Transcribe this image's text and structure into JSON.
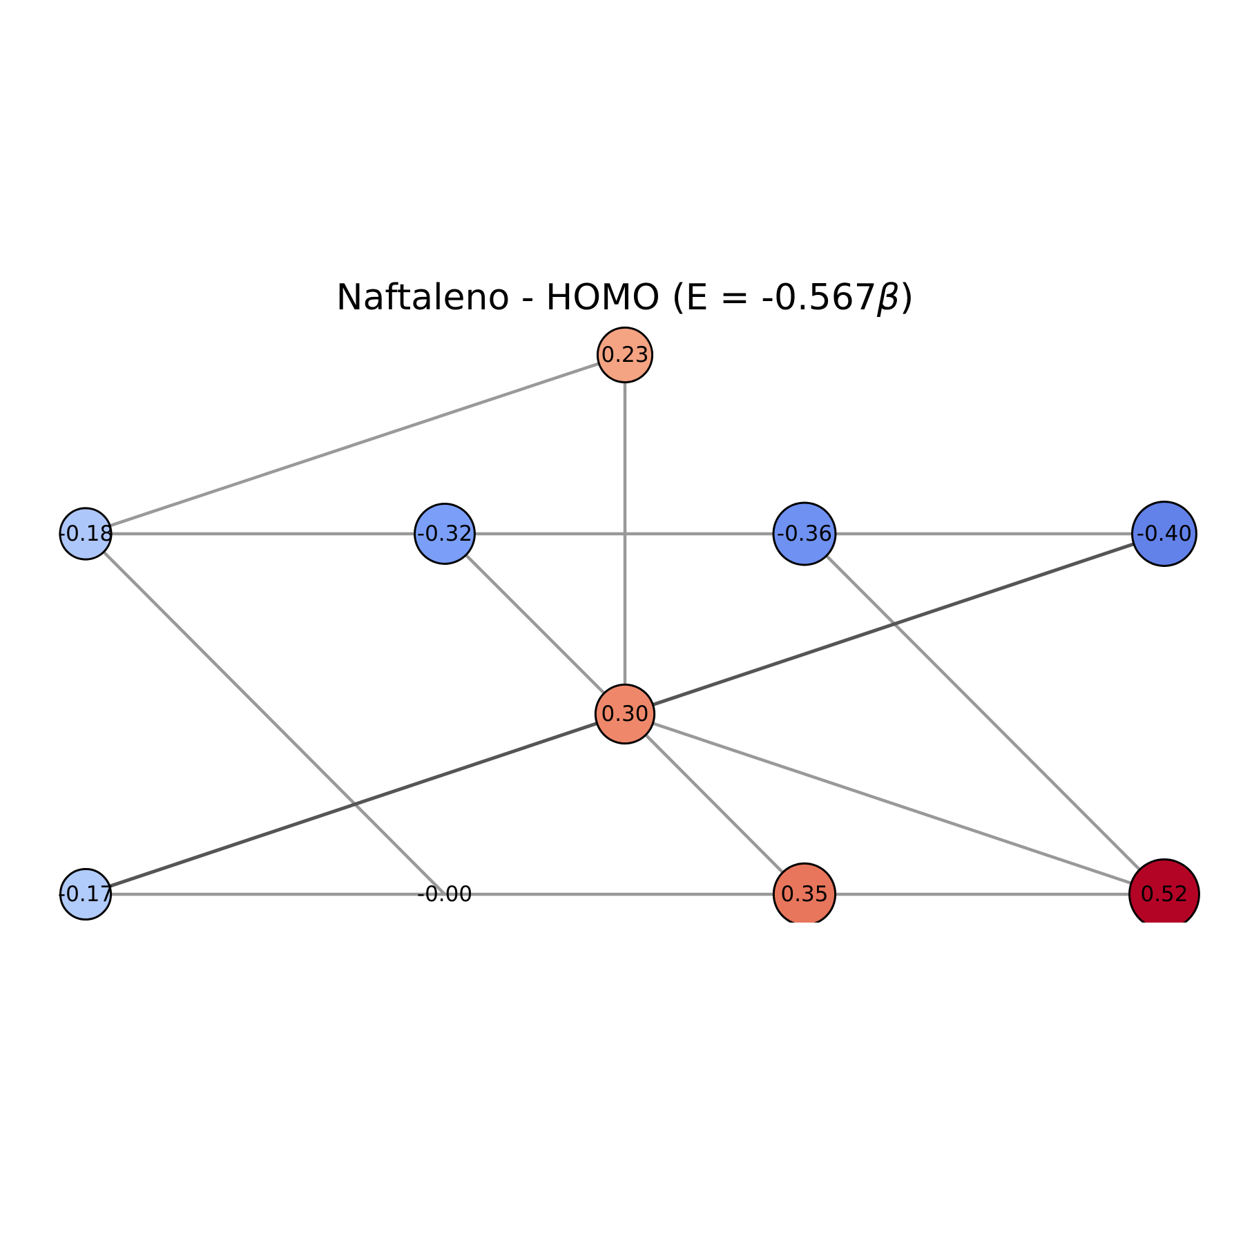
{
  "title": {
    "prefix": "Naftaleno - HOMO (E = -0.567",
    "beta": "β",
    "suffix": ")"
  },
  "nodes": [
    {
      "id": "n-023",
      "label": "0.23",
      "value": 0.23,
      "color": "#f4a383"
    },
    {
      "id": "n-m018",
      "label": "-0.18",
      "value": -0.18,
      "color": "#aec7fa"
    },
    {
      "id": "n-m032",
      "label": "-0.32",
      "value": -0.32,
      "color": "#7b9ff9"
    },
    {
      "id": "n-m036",
      "label": "-0.36",
      "value": -0.36,
      "color": "#6f91f2"
    },
    {
      "id": "n-m040",
      "label": "-0.40",
      "value": -0.4,
      "color": "#6282ea"
    },
    {
      "id": "n-030",
      "label": "0.30",
      "value": 0.3,
      "color": "#ef886b"
    },
    {
      "id": "n-m017",
      "label": "-0.17",
      "value": -0.17,
      "color": "#b1cbfb"
    },
    {
      "id": "n-000",
      "label": "-0.00",
      "value": 0.0,
      "color": "#dddcdc"
    },
    {
      "id": "n-035",
      "label": "0.35",
      "value": 0.35,
      "color": "#e8765c"
    },
    {
      "id": "n-052",
      "label": "0.52",
      "value": 0.52,
      "color": "#b40426"
    }
  ],
  "edges": [
    {
      "from": "n-m018",
      "to": "n-023",
      "dark": false
    },
    {
      "from": "n-023",
      "to": "n-030",
      "dark": false
    },
    {
      "from": "n-m018",
      "to": "n-m032",
      "dark": false
    },
    {
      "from": "n-m032",
      "to": "n-m036",
      "dark": false
    },
    {
      "from": "n-m036",
      "to": "n-m040",
      "dark": false
    },
    {
      "from": "n-m018",
      "to": "n-000",
      "dark": false
    },
    {
      "from": "n-m032",
      "to": "n-030",
      "dark": false
    },
    {
      "from": "n-m036",
      "to": "n-052",
      "dark": false
    },
    {
      "from": "n-030",
      "to": "n-m040",
      "dark": true
    },
    {
      "from": "n-m017",
      "to": "n-030",
      "dark": true
    },
    {
      "from": "n-030",
      "to": "n-052",
      "dark": false
    },
    {
      "from": "n-030",
      "to": "n-035",
      "dark": false
    },
    {
      "from": "n-m017",
      "to": "n-000",
      "dark": false
    },
    {
      "from": "n-000",
      "to": "n-035",
      "dark": false
    },
    {
      "from": "n-035",
      "to": "n-052",
      "dark": false
    }
  ],
  "colors": {
    "edge_light": "#999999",
    "edge_dark": "#555555",
    "node_stroke": "#000000"
  }
}
